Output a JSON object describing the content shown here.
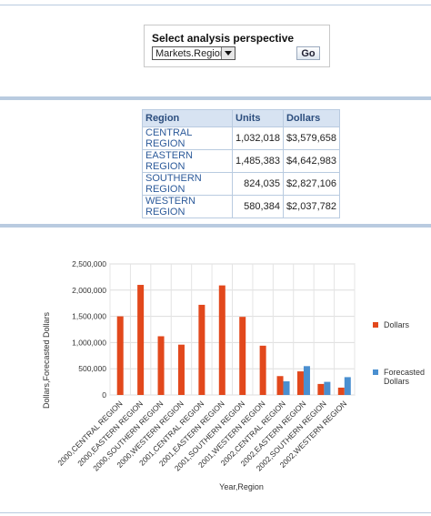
{
  "perspective": {
    "title": "Select analysis perspective",
    "selected": "Markets.Region",
    "go_label": "Go"
  },
  "table": {
    "headers": [
      "Region",
      "Units",
      "Dollars"
    ],
    "rows": [
      [
        "CENTRAL REGION",
        "1,032,018",
        "$3,579,658"
      ],
      [
        "EASTERN REGION",
        "1,485,383",
        "$4,642,983"
      ],
      [
        "SOUTHERN REGION",
        "824,035",
        "$2,827,106"
      ],
      [
        "WESTERN REGION",
        "580,384",
        "$2,037,782"
      ]
    ]
  },
  "colors": {
    "dollars": "#e2481c",
    "forecasted": "#4a8fd0",
    "header_bg": "#d7e3f2",
    "rule": "#b9cbe0"
  },
  "chart_data": {
    "type": "bar",
    "xlabel": "Year,Region",
    "ylabel": "Dollars,Forecasted Dollars",
    "ylim": [
      0,
      2500000
    ],
    "yticks": [
      "0",
      "500,000",
      "1,000,000",
      "1,500,000",
      "2,000,000",
      "2,500,000"
    ],
    "grid": true,
    "legend_position": "right",
    "categories": [
      "2000,CENTRAL REGION",
      "2000,EASTERN REGION",
      "2000,SOUTHERN REGION",
      "2000,WESTERN REGION",
      "2001,CENTRAL REGION",
      "2001,EASTERN REGION",
      "2001,SOUTHERN REGION",
      "2001,WESTERN REGION",
      "2002,CENTRAL REGION",
      "2002,EASTERN REGION",
      "2002,SOUTHERN REGION",
      "2002,WESTERN REGION"
    ],
    "series": [
      {
        "name": "Dollars",
        "values": [
          1500000,
          2100000,
          1120000,
          960000,
          1720000,
          2090000,
          1490000,
          940000,
          360000,
          450000,
          210000,
          140000
        ]
      },
      {
        "name": "Forecasted Dollars",
        "values": [
          null,
          null,
          null,
          null,
          null,
          null,
          null,
          null,
          260000,
          550000,
          250000,
          340000
        ]
      }
    ]
  }
}
